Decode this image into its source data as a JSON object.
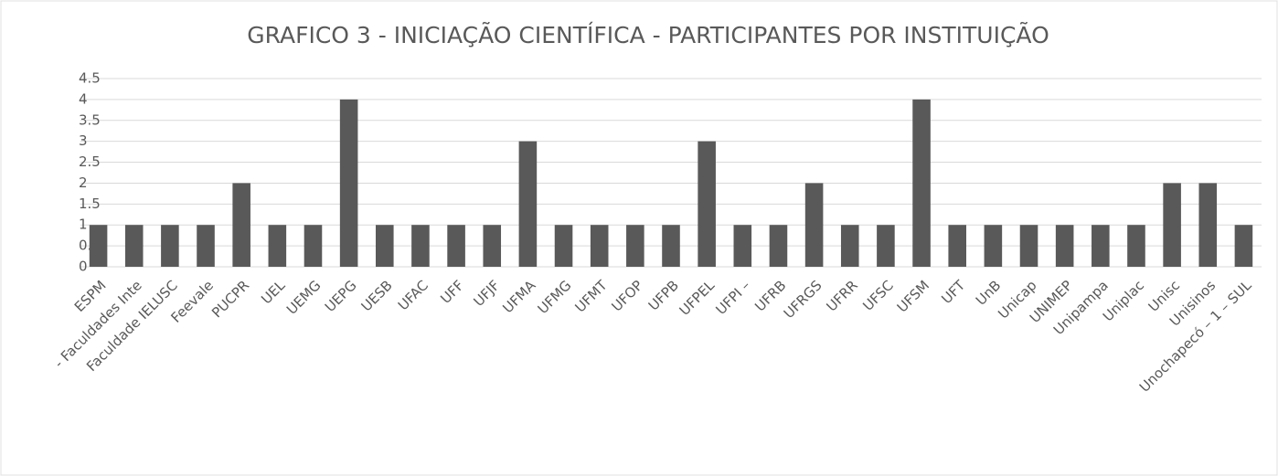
{
  "chart_data": {
    "type": "bar",
    "title": "GRAFICO 3 - INICIAÇÃO CIENTÍFICA - PARTICIPANTES POR INSTITUIÇÃO",
    "categories": [
      "ESPM",
      "- Faculdades Inte",
      "Faculdade IELUSC",
      "Feevale",
      "PUCPR",
      "UEL",
      "UEMG",
      "UEPG",
      "UESB",
      "UFAC",
      "UFF",
      "UFJF",
      "UFMA",
      "UFMG",
      "UFMT",
      "UFOP",
      "UFPB",
      "UFPEL",
      "UFPI –",
      "UFRB",
      "UFRGS",
      "UFRR",
      "UFSC",
      "UFSM",
      "UFT",
      "UnB",
      "Unicap",
      "UNIMEP",
      "Unipampa",
      "Uniplac",
      "Unisc",
      "Unisinos",
      "Unochapecó – 1 – SUL"
    ],
    "values": [
      1,
      1,
      1,
      1,
      2,
      1,
      1,
      4,
      1,
      1,
      1,
      1,
      3,
      1,
      1,
      1,
      1,
      3,
      1,
      1,
      2,
      1,
      1,
      4,
      1,
      1,
      1,
      1,
      1,
      1,
      2,
      2,
      1
    ],
    "color": "#595959",
    "ylim": [
      0,
      4.5
    ],
    "yticks": [
      0,
      0.5,
      1,
      1.5,
      2,
      2.5,
      3,
      3.5,
      4,
      4.5
    ],
    "grid": true
  }
}
